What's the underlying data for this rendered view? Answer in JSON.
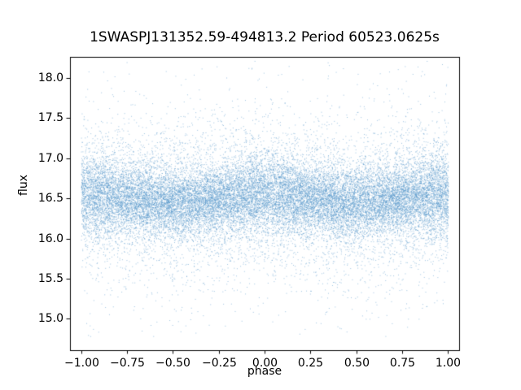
{
  "chart_data": {
    "type": "scatter",
    "title": "1SWASPJ131352.59-494813.2 Period 60523.0625s",
    "xlabel": "phase",
    "ylabel": "flux",
    "xlim": [
      -1.06,
      1.06
    ],
    "ylim": [
      14.61,
      18.26
    ],
    "xticks": [
      -1.0,
      -0.75,
      -0.5,
      -0.25,
      0.0,
      0.25,
      0.5,
      0.75,
      1.0
    ],
    "xtick_labels": [
      "−1.00",
      "−0.75",
      "−0.50",
      "−0.25",
      "0.00",
      "0.25",
      "0.50",
      "0.75",
      "1.00"
    ],
    "yticks": [
      15.0,
      15.5,
      16.0,
      16.5,
      17.0,
      17.5,
      18.0
    ],
    "ytick_labels": [
      "15.0",
      "15.5",
      "16.0",
      "16.5",
      "17.0",
      "17.5",
      "18.0"
    ],
    "grid": false,
    "legend": "none",
    "marker_color": "#4a90c7",
    "marker_alpha": 0.55,
    "marker_size_px": 1,
    "n_points": 26000,
    "distribution": {
      "description": "Phase-folded light curve: dense gaussian band around flux 16.5 with sparse faint outliers spanning ~14.8 to ~18.2; slight brightening/widening near phase 0 and +/-1",
      "phase_range": [
        -1.0,
        1.0
      ],
      "flux_mean": 16.5,
      "core_fraction": 0.72,
      "core_sigma": 0.21,
      "mid_fraction": 0.22,
      "mid_sigma": 0.45,
      "outlier_fraction": 0.06,
      "outlier_sigma": 0.85,
      "modulation_amplitude": 0.05,
      "flux_min": 14.78,
      "flux_max": 18.22,
      "seed": 42
    }
  }
}
